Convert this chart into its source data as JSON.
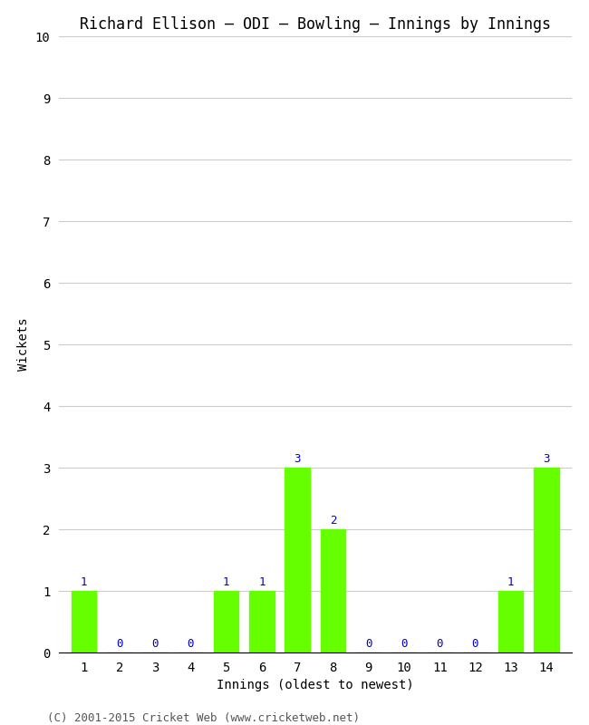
{
  "title": "Richard Ellison – ODI – Bowling – Innings by Innings",
  "xlabel": "Innings (oldest to newest)",
  "ylabel": "Wickets",
  "categories": [
    1,
    2,
    3,
    4,
    5,
    6,
    7,
    8,
    9,
    10,
    11,
    12,
    13,
    14
  ],
  "values": [
    1,
    0,
    0,
    0,
    1,
    1,
    3,
    2,
    0,
    0,
    0,
    0,
    1,
    3
  ],
  "bar_color": "#66ff00",
  "bar_edge_color": "#66ff00",
  "label_color": "#0000cc",
  "ylim": [
    0,
    10
  ],
  "yticks": [
    0,
    1,
    2,
    3,
    4,
    5,
    6,
    7,
    8,
    9,
    10
  ],
  "background_color": "#ffffff",
  "grid_color": "#cccccc",
  "title_fontsize": 12,
  "axis_label_fontsize": 10,
  "tick_fontsize": 10,
  "value_label_fontsize": 9,
  "footer": "(C) 2001-2015 Cricket Web (www.cricketweb.net)",
  "footer_fontsize": 9
}
